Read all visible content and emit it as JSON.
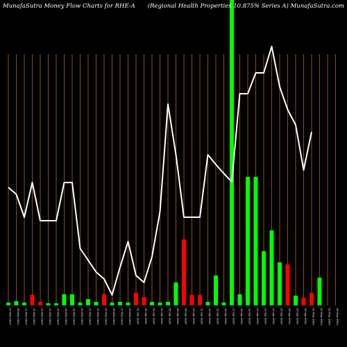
{
  "header": {
    "left": "MunafaSutra  Money Flow  Charts for RHE-A",
    "right": "(Regional Health Properties 10.875% Series A) MunafaSutra.com"
  },
  "colors": {
    "background": "#000000",
    "grid": "#b8650f",
    "up": "#00ff00",
    "down": "#ff0000",
    "line": "#ffffff",
    "label": "#ffffff"
  },
  "chart_data": {
    "type": "bar",
    "categories": [
      "07 Mar 2024",
      "08 Mar 2024",
      "11 Mar 2024",
      "12 Mar 2024",
      "13 Mar 2024",
      "14 Mar 2024",
      "15 Mar 2024",
      "18 Mar 2024",
      "19 Mar 2024",
      "20 Mar 2024",
      "21 Mar 2024",
      "22 Mar 2024",
      "25 Mar 2024",
      "26 Mar 2024",
      "27 Mar 2024",
      "28 Mar 2024",
      "01 Apr 2024",
      "02 Apr 2024",
      "03 Apr 2024",
      "04 Apr 2024",
      "05 Apr 2024",
      "08 Apr 2024",
      "09 Apr 2024",
      "10 Apr 2024",
      "11 Apr 2024",
      "12 Apr 2024",
      "15 Apr 2024",
      "16 Apr 2024",
      "17 Apr 2024",
      "18 Apr 2024",
      "19 Apr 2024",
      "22 Apr 2024",
      "23 Apr 2024",
      "24 Apr 2024",
      "25 Apr 2024",
      "26 Apr 2024",
      "29 Apr 2024",
      "30 Apr 2024",
      "01 May 2024",
      "02 May 2024",
      "03 May 2024",
      "06 May 2024"
    ],
    "series": [
      {
        "kind": "bars",
        "values": [
          4,
          6,
          4,
          15,
          5,
          3,
          3,
          16,
          16,
          4,
          9,
          5,
          16,
          4,
          5,
          4,
          18,
          12,
          5,
          4,
          5,
          33,
          95,
          15,
          15,
          5,
          43,
          4,
          440,
          16,
          185,
          185,
          78,
          108,
          62,
          59,
          14,
          11,
          18,
          40,
          0,
          0
        ],
        "colors": [
          "up",
          "up",
          "up",
          "down",
          "down",
          "up",
          "up",
          "up",
          "up",
          "up",
          "up",
          "up",
          "down",
          "up",
          "up",
          "up",
          "down",
          "down",
          "up",
          "up",
          "up",
          "up",
          "down",
          "down",
          "down",
          "up",
          "up",
          "up",
          "up",
          "up",
          "up",
          "up",
          "up",
          "up",
          "up",
          "down",
          "up",
          "down",
          "down",
          "up",
          "up",
          "up"
        ]
      },
      {
        "kind": "line",
        "values": [
          270,
          280,
          313,
          263,
          318,
          318,
          318,
          263,
          263,
          358,
          375,
          392,
          402,
          425,
          385,
          348,
          397,
          407,
          370,
          305,
          150,
          223,
          313,
          313,
          313,
          223,
          237,
          250,
          262,
          135,
          135,
          105,
          105,
          67,
          125,
          158,
          180,
          245,
          190,
          null,
          null,
          null
        ]
      }
    ],
    "yRangeBars": [
      0,
      440
    ],
    "lineYRange": [
      0,
      500
    ]
  }
}
